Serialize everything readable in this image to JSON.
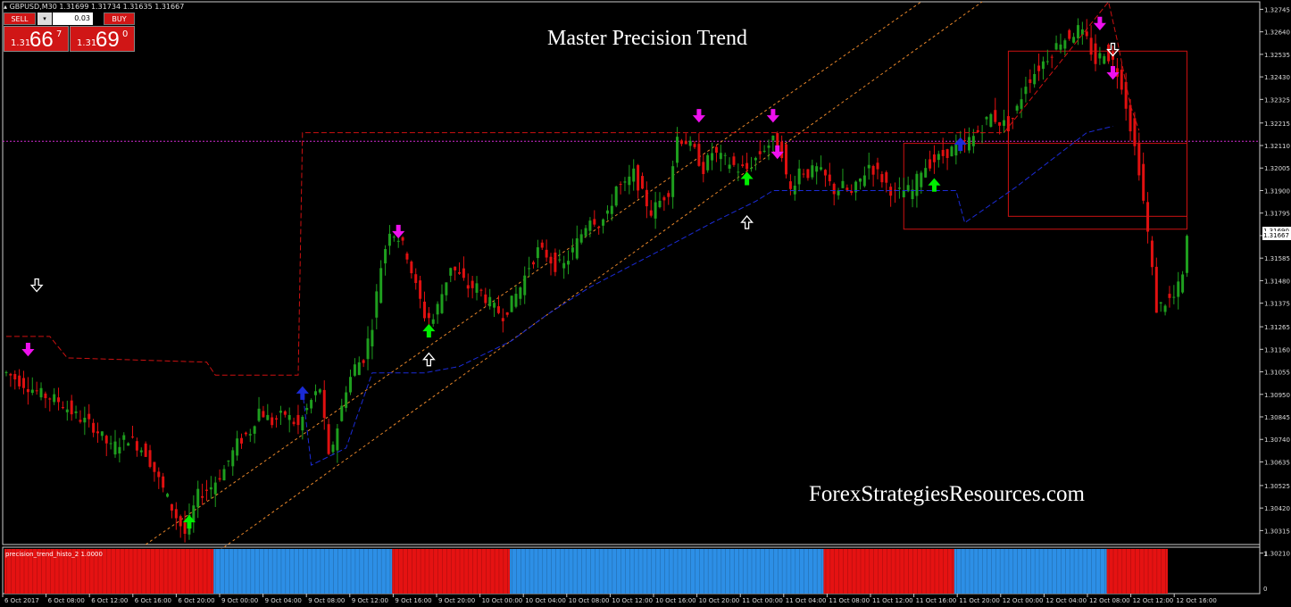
{
  "header": {
    "symbol_info": "GBPUSD,M30  1.31699 1.31734 1.31635 1.31667"
  },
  "trade_panel": {
    "sell_label": "SELL",
    "buy_label": "BUY",
    "lot_value": "0.03",
    "bid": {
      "small": "1.31",
      "big": "66",
      "sup": "7"
    },
    "ask": {
      "small": "1.31",
      "big": "69",
      "sup": "0"
    }
  },
  "title": "Master Precision Trend",
  "watermark": "ForexStrategiesResources.com",
  "indicator_label": "precision_trend_histo_2 1.0000",
  "current_price_tags": [
    "1.31690",
    "1.31667"
  ],
  "colors": {
    "bull": "#1e9e1e",
    "bear": "#e01010",
    "upper_band": "#cc1111",
    "lower_band": "#1b2bd6",
    "channel": "#e8862a",
    "hline": "#d02ad0",
    "buy_arrow": "#00ee00",
    "sell_arrow": "#ee11ee",
    "histo_red": "#e51212",
    "histo_blue": "#2d8fe6"
  },
  "chart_data": {
    "type": "candlestick",
    "symbol": "GBPUSD",
    "timeframe": "M30",
    "ylim": [
      1.3025,
      1.3278
    ],
    "y_ticks": [
      "1.32745",
      "1.32640",
      "1.32535",
      "1.32430",
      "1.32325",
      "1.32215",
      "1.32110",
      "1.32005",
      "1.31900",
      "1.31795",
      "1.31690",
      "1.31585",
      "1.31480",
      "1.31375",
      "1.31265",
      "1.31160",
      "1.31055",
      "1.30950",
      "1.30845",
      "1.30740",
      "1.30635",
      "1.30525",
      "1.30420",
      "1.30315",
      "1.30210"
    ],
    "x_ticks": [
      "6 Oct 2017",
      "6 Oct 08:00",
      "6 Oct 12:00",
      "6 Oct 16:00",
      "6 Oct 20:00",
      "9 Oct 00:00",
      "9 Oct 04:00",
      "9 Oct 08:00",
      "9 Oct 12:00",
      "9 Oct 16:00",
      "9 Oct 20:00",
      "10 Oct 00:00",
      "10 Oct 04:00",
      "10 Oct 08:00",
      "10 Oct 12:00",
      "10 Oct 16:00",
      "10 Oct 20:00",
      "11 Oct 00:00",
      "11 Oct 04:00",
      "11 Oct 08:00",
      "11 Oct 12:00",
      "11 Oct 16:00",
      "11 Oct 20:00",
      "12 Oct 00:00",
      "12 Oct 04:00",
      "12 Oct 08:00",
      "12 Oct 12:00",
      "12 Oct 16:00"
    ],
    "close_path": [
      [
        0,
        1.3105
      ],
      [
        4,
        1.31
      ],
      [
        8,
        1.3095
      ],
      [
        12,
        1.3092
      ],
      [
        16,
        1.3085
      ],
      [
        20,
        1.308
      ],
      [
        24,
        1.307
      ],
      [
        28,
        1.3075
      ],
      [
        32,
        1.3068
      ],
      [
        35,
        1.3055
      ],
      [
        38,
        1.3042
      ],
      [
        41,
        1.303
      ],
      [
        44,
        1.3048
      ],
      [
        47,
        1.3052
      ],
      [
        50,
        1.306
      ],
      [
        53,
        1.3072
      ],
      [
        56,
        1.3078
      ],
      [
        58,
        1.3088
      ],
      [
        61,
        1.3082
      ],
      [
        64,
        1.3086
      ],
      [
        67,
        1.308
      ],
      [
        70,
        1.3092
      ],
      [
        72,
        1.3098
      ],
      [
        74,
        1.3065
      ],
      [
        76,
        1.308
      ],
      [
        78,
        1.3098
      ],
      [
        80,
        1.3108
      ],
      [
        82,
        1.3112
      ],
      [
        84,
        1.3128
      ],
      [
        86,
        1.3155
      ],
      [
        88,
        1.3172
      ],
      [
        90,
        1.3168
      ],
      [
        92,
        1.316
      ],
      [
        94,
        1.3145
      ],
      [
        96,
        1.3132
      ],
      [
        98,
        1.313
      ],
      [
        100,
        1.3142
      ],
      [
        102,
        1.3155
      ],
      [
        104,
        1.315
      ],
      [
        106,
        1.3145
      ],
      [
        108,
        1.3145
      ],
      [
        110,
        1.314
      ],
      [
        112,
        1.3135
      ],
      [
        114,
        1.3132
      ],
      [
        116,
        1.3138
      ],
      [
        118,
        1.3145
      ],
      [
        120,
        1.3155
      ],
      [
        122,
        1.3162
      ],
      [
        124,
        1.316
      ],
      [
        126,
        1.3155
      ],
      [
        128,
        1.3155
      ],
      [
        130,
        1.3162
      ],
      [
        132,
        1.317
      ],
      [
        134,
        1.3178
      ],
      [
        136,
        1.3175
      ],
      [
        138,
        1.3178
      ],
      [
        140,
        1.3192
      ],
      [
        142,
        1.3192
      ],
      [
        144,
        1.3198
      ],
      [
        146,
        1.3188
      ],
      [
        148,
        1.318
      ],
      [
        150,
        1.3185
      ],
      [
        152,
        1.319
      ],
      [
        154,
        1.3215
      ],
      [
        156,
        1.3213
      ],
      [
        158,
        1.3208
      ],
      [
        160,
        1.32
      ],
      [
        162,
        1.3208
      ],
      [
        164,
        1.3205
      ],
      [
        166,
        1.3203
      ],
      [
        168,
        1.32
      ],
      [
        170,
        1.32
      ],
      [
        172,
        1.3205
      ],
      [
        174,
        1.321
      ],
      [
        176,
        1.3213
      ],
      [
        178,
        1.3208
      ],
      [
        179,
        1.3196
      ],
      [
        180,
        1.319
      ],
      [
        182,
        1.32
      ],
      [
        184,
        1.3198
      ],
      [
        186,
        1.32
      ],
      [
        188,
        1.3196
      ],
      [
        190,
        1.319
      ],
      [
        192,
        1.3192
      ],
      [
        194,
        1.3188
      ],
      [
        196,
        1.3195
      ],
      [
        198,
        1.3202
      ],
      [
        200,
        1.3198
      ],
      [
        202,
        1.3193
      ],
      [
        204,
        1.3188
      ],
      [
        206,
        1.319
      ],
      [
        208,
        1.319
      ],
      [
        210,
        1.32
      ],
      [
        212,
        1.3203
      ],
      [
        214,
        1.3205
      ],
      [
        216,
        1.3208
      ],
      [
        218,
        1.321
      ],
      [
        220,
        1.3212
      ],
      [
        222,
        1.3215
      ],
      [
        224,
        1.322
      ],
      [
        226,
        1.3225
      ],
      [
        228,
        1.3222
      ],
      [
        230,
        1.322
      ],
      [
        232,
        1.3228
      ],
      [
        234,
        1.324
      ],
      [
        236,
        1.3245
      ],
      [
        238,
        1.325
      ],
      [
        240,
        1.3255
      ],
      [
        242,
        1.326
      ],
      [
        244,
        1.3262
      ],
      [
        246,
        1.3265
      ],
      [
        248,
        1.326
      ],
      [
        250,
        1.325
      ],
      [
        252,
        1.3255
      ],
      [
        254,
        1.325
      ],
      [
        256,
        1.324
      ],
      [
        258,
        1.322
      ],
      [
        260,
        1.32
      ],
      [
        262,
        1.317
      ],
      [
        264,
        1.3135
      ],
      [
        266,
        1.3138
      ],
      [
        268,
        1.314
      ],
      [
        270,
        1.315
      ],
      [
        271,
        1.3167
      ]
    ],
    "upper_band_line": [
      [
        0,
        1.3122
      ],
      [
        10,
        1.3122
      ],
      [
        14,
        1.3112
      ],
      [
        46,
        1.311
      ],
      [
        48,
        1.3104
      ],
      [
        67,
        1.3104
      ],
      [
        68,
        1.3217
      ],
      [
        117,
        1.3217
      ],
      [
        118,
        1.3217
      ],
      [
        228,
        1.3217
      ],
      [
        229,
        1.3217
      ],
      [
        253,
        1.3278
      ],
      [
        255,
        1.326
      ],
      [
        258,
        1.323
      ],
      [
        260,
        1.3218
      ]
    ],
    "lower_band_line": [
      [
        68,
        1.3097
      ],
      [
        70,
        1.3062
      ],
      [
        78,
        1.307
      ],
      [
        84,
        1.3105
      ],
      [
        96,
        1.3105
      ],
      [
        104,
        1.3108
      ],
      [
        116,
        1.312
      ],
      [
        124,
        1.3132
      ],
      [
        134,
        1.3145
      ],
      [
        150,
        1.3162
      ],
      [
        162,
        1.3175
      ],
      [
        172,
        1.3185
      ],
      [
        176,
        1.319
      ],
      [
        218,
        1.319
      ],
      [
        220,
        1.3175
      ],
      [
        232,
        1.3192
      ],
      [
        248,
        1.3217
      ],
      [
        254,
        1.322
      ]
    ],
    "channel_lines": [
      {
        "from": [
          32,
          1.3025
        ],
        "to": [
          210,
          1.3278
        ]
      },
      {
        "from": [
          44,
          1.3015
        ],
        "to": [
          224,
          1.3278
        ]
      }
    ],
    "extra_boxes": [
      {
        "x0": 230,
        "x1": 271,
        "y0": 1.3255,
        "y1": 1.3178,
        "color": "#cc1111"
      },
      {
        "x0": 206,
        "x1": 271,
        "y0": 1.3212,
        "y1": 1.3172,
        "color": "#cc1111"
      }
    ],
    "horizontal_line": 1.3213,
    "arrows": [
      {
        "x": 5,
        "y": 1.3113,
        "dir": "down",
        "color": "sell"
      },
      {
        "x": 7,
        "y": 1.3118,
        "dir": "down",
        "color": "white",
        "offset": -58
      },
      {
        "x": 42,
        "y": 1.3036,
        "dir": "up",
        "color": "buy"
      },
      {
        "x": 68,
        "y": 1.3096,
        "dir": "up",
        "color": "blue"
      },
      {
        "x": 90,
        "y": 1.3168,
        "dir": "down",
        "color": "sell"
      },
      {
        "x": 97,
        "y": 1.3125,
        "dir": "up",
        "color": "buy"
      },
      {
        "x": 97,
        "y": 1.3125,
        "dir": "up",
        "color": "white",
        "offset": 28
      },
      {
        "x": 159,
        "y": 1.3222,
        "dir": "down",
        "color": "sell"
      },
      {
        "x": 170,
        "y": 1.3196,
        "dir": "up",
        "color": "buy"
      },
      {
        "x": 170,
        "y": 1.3196,
        "dir": "up",
        "color": "white",
        "offset": 45
      },
      {
        "x": 176,
        "y": 1.3222,
        "dir": "down",
        "color": "sell"
      },
      {
        "x": 177,
        "y": 1.3205,
        "dir": "down",
        "color": "sell"
      },
      {
        "x": 213,
        "y": 1.3193,
        "dir": "up",
        "color": "buy"
      },
      {
        "x": 219,
        "y": 1.3212,
        "dir": "up",
        "color": "blue"
      },
      {
        "x": 251,
        "y": 1.3265,
        "dir": "down",
        "color": "sell"
      },
      {
        "x": 254,
        "y": 1.3252,
        "dir": "down",
        "color": "white"
      },
      {
        "x": 254,
        "y": 1.3242,
        "dir": "down",
        "color": "sell"
      }
    ],
    "histogram_segments": [
      {
        "from": 0,
        "to": 48,
        "state": "red"
      },
      {
        "from": 48,
        "to": 89,
        "state": "blue"
      },
      {
        "from": 89,
        "to": 116,
        "state": "red"
      },
      {
        "from": 116,
        "to": 188,
        "state": "blue"
      },
      {
        "from": 188,
        "to": 218,
        "state": "red"
      },
      {
        "from": 218,
        "to": 253,
        "state": "blue"
      },
      {
        "from": 253,
        "to": 267,
        "state": "red"
      }
    ],
    "histogram_scale": [
      "1",
      "0"
    ]
  }
}
